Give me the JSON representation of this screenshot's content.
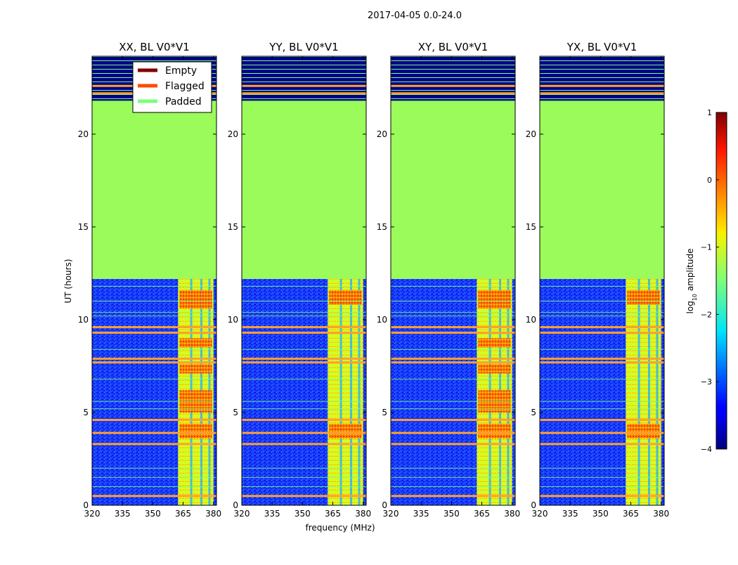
{
  "chart_data": {
    "type": "heatmap",
    "suptitle": "2017-04-05 0.0-24.0",
    "xlabel": "frequency (MHz)",
    "ylabel": "UT (hours)",
    "xlim": [
      320,
      381.5
    ],
    "ylim": [
      0,
      24.2
    ],
    "x_ticks": [
      320,
      335,
      350,
      365,
      380
    ],
    "y_ticks": [
      0,
      5,
      10,
      15,
      20
    ],
    "panels": [
      {
        "title": "XX, BL V0*V1"
      },
      {
        "title": "YY, BL V0*V1"
      },
      {
        "title": "XY, BL V0*V1"
      },
      {
        "title": "YX, BL V0*V1"
      }
    ],
    "legend": {
      "location": "upper right of first panel",
      "entries": [
        {
          "label": "Empty",
          "color": "#800000"
        },
        {
          "label": "Flagged",
          "color": "#ff4a00"
        },
        {
          "label": "Padded",
          "color": "#7cff79"
        }
      ]
    },
    "colorbar": {
      "label": "log₁₀ amplitude",
      "label_prefix": "log",
      "label_sub": "10",
      "label_suffix": " amplitude",
      "range": [
        -4,
        1
      ],
      "ticks": [
        {
          "value": 1,
          "label": "1"
        },
        {
          "value": 0,
          "label": "0"
        },
        {
          "value": -1,
          "label": "−1"
        },
        {
          "value": -2,
          "label": "−2"
        },
        {
          "value": -3,
          "label": "−3"
        },
        {
          "value": -4,
          "label": "−4"
        }
      ],
      "colormap": "jet"
    },
    "regions": {
      "padded_hours": [
        12.2,
        21.8
      ],
      "rfi_band_mhz": [
        362.5,
        380
      ],
      "flagged_rows_hours": [
        0.5,
        3.3,
        3.9,
        4.6,
        7.7,
        7.9,
        9.3,
        9.6,
        22.2,
        22.6
      ],
      "background_log_amplitude": -3,
      "rfi_log_amplitude": -1
    }
  }
}
